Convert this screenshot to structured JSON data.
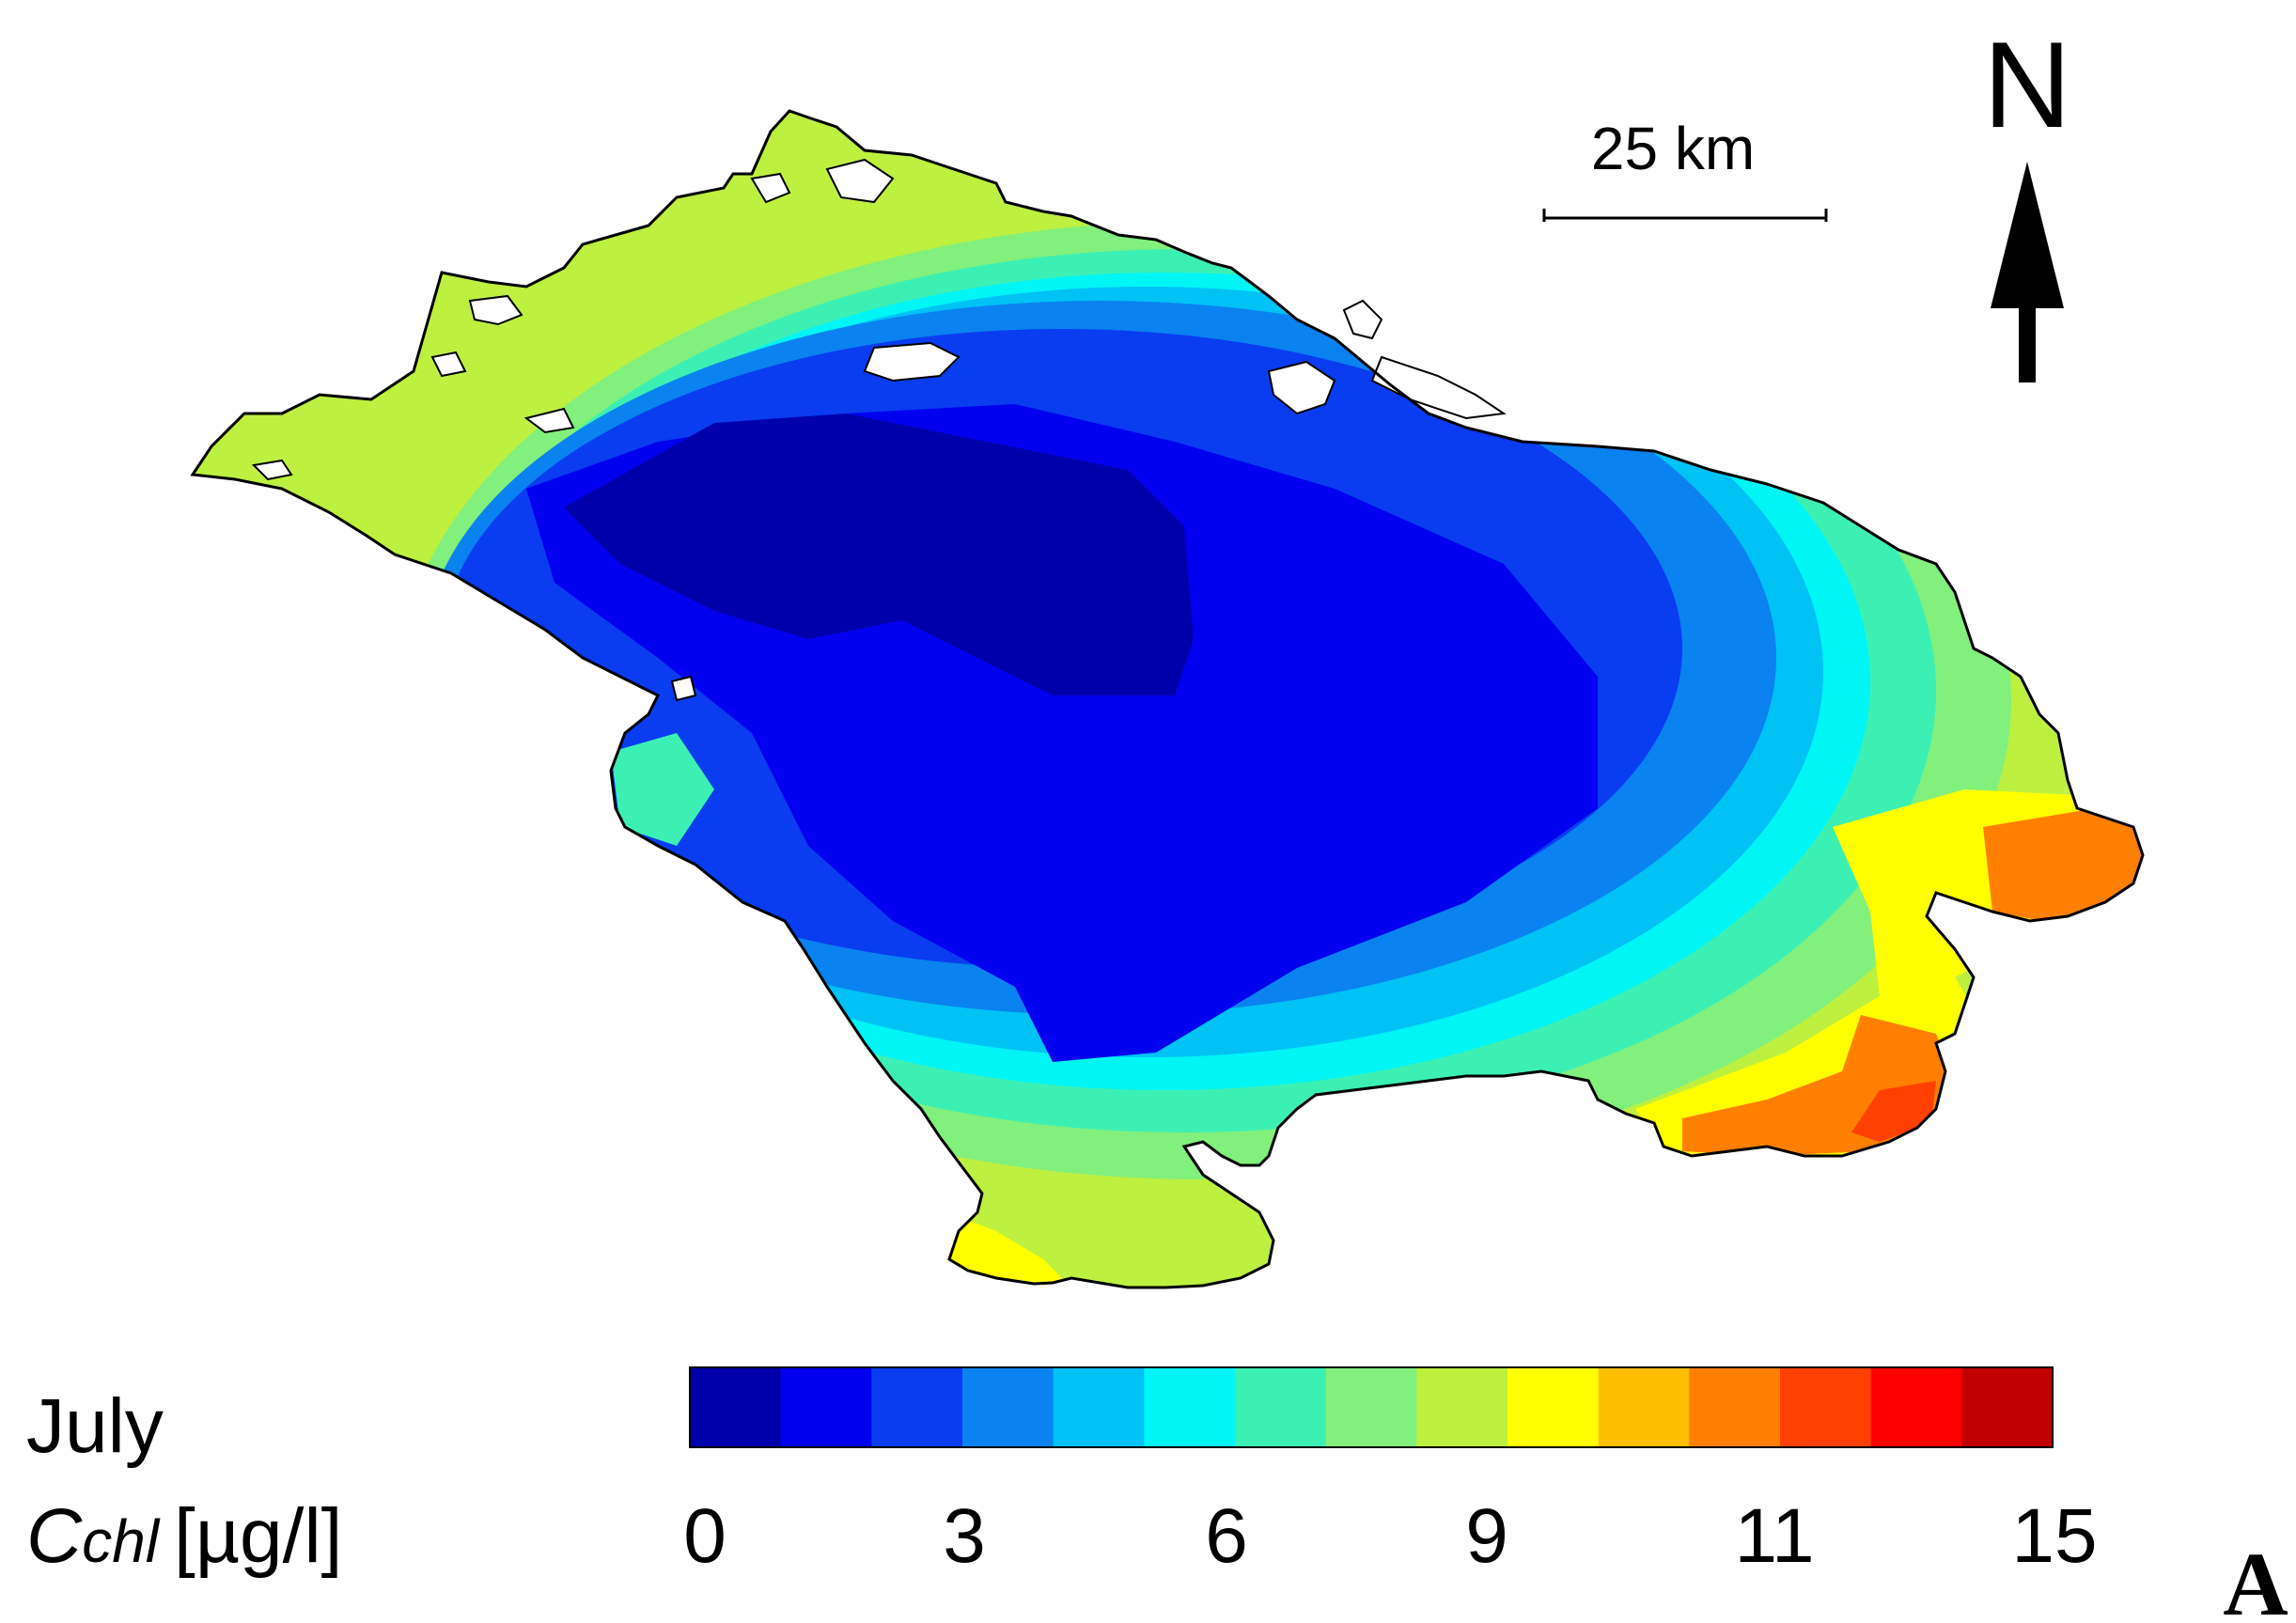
{
  "map": {
    "month": "July",
    "quantity_symbol": "C",
    "quantity_subscript": "chl",
    "unit": "[µg/l]",
    "north_label": "N",
    "scale_label": "25 km",
    "panel_label": "A"
  },
  "legend": {
    "colors": [
      "#0000aa",
      "#0000ee",
      "#0a3cf0",
      "#0a82f0",
      "#00c2f5",
      "#00f5f5",
      "#3cf0b4",
      "#82f07c",
      "#bef040",
      "#ffff00",
      "#ffbe00",
      "#ff8000",
      "#ff4000",
      "#ff0000",
      "#c00000"
    ],
    "tick_labels": [
      {
        "label": "0",
        "value": 0
      },
      {
        "label": "3",
        "value": 3
      },
      {
        "label": "6",
        "value": 6
      },
      {
        "label": "9",
        "value": 9
      },
      {
        "label": "11",
        "value": 11
      },
      {
        "label": "15",
        "value": 15
      }
    ]
  }
}
